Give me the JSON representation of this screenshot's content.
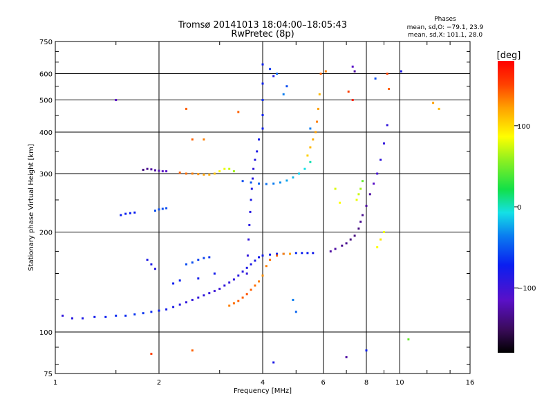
{
  "chart_data": {
    "type": "scatter",
    "title": "Tromsø 20141013 18:04:00–18:05:43",
    "subtitle": "RwPretec (8p)",
    "stats_title": "Phases",
    "stats_line1": "mean, sd,O: −79.1, 23.9",
    "stats_line2": "mean, sd,X: 101.1, 28.0",
    "xlabel": "Frequency [MHz]",
    "ylabel": "Stationary phase Virtual Height [km]",
    "x_scale": "log",
    "y_scale": "log",
    "xlim": [
      1,
      16
    ],
    "ylim": [
      75,
      750
    ],
    "x_ticks": [
      1,
      2,
      4,
      6,
      8,
      10,
      16
    ],
    "x_tick_labels": [
      "1",
      "2",
      "4",
      "6",
      "8",
      "10",
      "16"
    ],
    "y_ticks": [
      75,
      100,
      200,
      300,
      400,
      500,
      600,
      750
    ],
    "y_tick_labels": [
      "75",
      "100",
      "200",
      "300",
      "400",
      "500",
      "600",
      "750"
    ],
    "grid": true,
    "colorbar": {
      "label": "[deg]",
      "range": [
        -180,
        180
      ],
      "ticks": [
        100,
        0,
        -100
      ],
      "tick_labels": [
        "100",
        "0",
        "−100"
      ]
    },
    "series": [
      {
        "values": [
          [
            1.05,
            112,
            -100
          ],
          [
            1.12,
            110,
            -95
          ],
          [
            1.2,
            110,
            -90
          ],
          [
            1.3,
            111,
            -85
          ],
          [
            1.4,
            111,
            -80
          ],
          [
            1.5,
            112,
            -75
          ],
          [
            1.6,
            112,
            -75
          ],
          [
            1.7,
            113,
            -70
          ],
          [
            1.8,
            114,
            -70
          ],
          [
            1.9,
            115,
            -75
          ],
          [
            2.0,
            116,
            -80
          ],
          [
            2.1,
            117,
            -85
          ],
          [
            2.2,
            119,
            -90
          ],
          [
            2.3,
            121,
            -95
          ],
          [
            2.4,
            123,
            -100
          ],
          [
            2.5,
            125,
            -100
          ],
          [
            2.6,
            127,
            -100
          ],
          [
            2.7,
            129,
            -100
          ],
          [
            2.8,
            131,
            -100
          ],
          [
            2.9,
            133,
            -105
          ],
          [
            3.0,
            135,
            -105
          ],
          [
            3.1,
            138,
            -100
          ],
          [
            3.2,
            141,
            -100
          ],
          [
            3.3,
            144,
            -100
          ],
          [
            3.4,
            148,
            -95
          ],
          [
            3.5,
            152,
            -95
          ],
          [
            3.6,
            156,
            -90
          ],
          [
            3.7,
            160,
            -90
          ],
          [
            3.8,
            164,
            -90
          ],
          [
            3.9,
            168,
            -85
          ],
          [
            4.0,
            170,
            -85
          ],
          [
            4.2,
            171,
            -80
          ],
          [
            4.4,
            172,
            -80
          ],
          [
            4.6,
            172,
            -75
          ],
          [
            4.8,
            172,
            -75
          ],
          [
            5.0,
            173,
            -75
          ],
          [
            5.2,
            173,
            -80
          ],
          [
            5.4,
            173,
            -80
          ],
          [
            5.6,
            173,
            -85
          ]
        ]
      },
      {
        "values": [
          [
            3.2,
            120,
            140
          ],
          [
            3.3,
            122,
            145
          ],
          [
            3.4,
            124,
            150
          ],
          [
            3.5,
            127,
            150
          ],
          [
            3.6,
            130,
            155
          ],
          [
            3.7,
            134,
            150
          ],
          [
            3.8,
            138,
            145
          ],
          [
            3.9,
            142,
            140
          ],
          [
            4.0,
            148,
            135
          ],
          [
            4.1,
            158,
            140
          ],
          [
            4.2,
            165,
            145
          ],
          [
            4.4,
            170,
            150
          ],
          [
            4.6,
            172,
            140
          ],
          [
            4.8,
            172,
            130
          ]
        ]
      },
      {
        "values": [
          [
            3.6,
            150,
            -100
          ],
          [
            3.62,
            170,
            -100
          ],
          [
            3.64,
            190,
            -100
          ],
          [
            3.66,
            210,
            -95
          ],
          [
            3.68,
            230,
            -95
          ],
          [
            3.7,
            250,
            -90
          ],
          [
            3.72,
            270,
            -90
          ],
          [
            3.74,
            290,
            -95
          ],
          [
            3.76,
            310,
            -100
          ],
          [
            3.8,
            330,
            -95
          ],
          [
            3.85,
            350,
            -90
          ],
          [
            3.9,
            380,
            -85
          ],
          [
            4.0,
            410,
            -80
          ],
          [
            4.0,
            450,
            -80
          ],
          [
            4.0,
            500,
            -75
          ],
          [
            4.0,
            560,
            -80
          ]
        ]
      },
      {
        "values": [
          [
            3.5,
            285,
            -60
          ],
          [
            3.7,
            282,
            -55
          ],
          [
            3.9,
            280,
            -50
          ],
          [
            4.1,
            279,
            -45
          ],
          [
            4.3,
            280,
            -40
          ],
          [
            4.5,
            282,
            -35
          ],
          [
            4.7,
            286,
            -30
          ],
          [
            4.9,
            292,
            -25
          ],
          [
            5.1,
            300,
            -20
          ],
          [
            5.3,
            310,
            -15
          ],
          [
            5.5,
            325,
            -10
          ]
        ]
      },
      {
        "values": [
          [
            5.4,
            340,
            110
          ],
          [
            5.5,
            360,
            120
          ],
          [
            5.6,
            380,
            125
          ],
          [
            5.7,
            400,
            130
          ],
          [
            5.75,
            430,
            140
          ],
          [
            5.8,
            470,
            130
          ],
          [
            5.85,
            520,
            120
          ],
          [
            5.9,
            600,
            150
          ]
        ]
      },
      {
        "values": [
          [
            1.8,
            308,
            -140
          ],
          [
            1.85,
            310,
            -135
          ],
          [
            1.9,
            309,
            -130
          ],
          [
            1.95,
            307,
            -130
          ],
          [
            2.0,
            306,
            -125
          ],
          [
            2.05,
            305,
            -120
          ],
          [
            2.1,
            305,
            -120
          ]
        ]
      },
      {
        "values": [
          [
            2.3,
            302,
            150
          ],
          [
            2.4,
            300,
            145
          ],
          [
            2.5,
            300,
            140
          ],
          [
            2.6,
            299,
            135
          ],
          [
            2.7,
            298,
            130
          ],
          [
            2.8,
            298,
            125
          ],
          [
            2.9,
            300,
            115
          ],
          [
            3.0,
            305,
            90
          ],
          [
            3.1,
            310,
            80
          ],
          [
            3.2,
            310,
            60
          ],
          [
            3.3,
            305,
            40
          ]
        ]
      },
      {
        "values": [
          [
            1.55,
            225,
            -80
          ],
          [
            1.6,
            227,
            -80
          ],
          [
            1.65,
            228,
            -80
          ],
          [
            1.7,
            229,
            -80
          ],
          [
            1.95,
            232,
            -60
          ],
          [
            2.0,
            234,
            -60
          ],
          [
            2.05,
            235,
            -60
          ],
          [
            2.1,
            236,
            -60
          ]
        ]
      },
      {
        "values": [
          [
            6.3,
            175,
            -130
          ],
          [
            6.5,
            178,
            -130
          ],
          [
            6.8,
            182,
            -135
          ],
          [
            7.0,
            185,
            -135
          ],
          [
            7.2,
            190,
            -140
          ],
          [
            7.4,
            195,
            -140
          ],
          [
            7.6,
            205,
            -140
          ],
          [
            7.7,
            215,
            -135
          ],
          [
            7.8,
            225,
            -135
          ],
          [
            8.0,
            240,
            -130
          ],
          [
            8.2,
            260,
            -130
          ],
          [
            8.4,
            280,
            -120
          ],
          [
            8.6,
            300,
            -110
          ],
          [
            8.8,
            330,
            -100
          ],
          [
            9.0,
            370,
            -100
          ],
          [
            9.2,
            420,
            -100
          ]
        ]
      },
      {
        "values": [
          [
            7.5,
            250,
            80
          ],
          [
            7.6,
            260,
            60
          ],
          [
            7.7,
            270,
            40
          ],
          [
            7.8,
            285,
            20
          ],
          [
            8.6,
            180,
            90
          ],
          [
            8.8,
            190,
            100
          ],
          [
            9.0,
            200,
            80
          ],
          [
            6.5,
            270,
            70
          ],
          [
            6.7,
            245,
            90
          ]
        ]
      },
      {
        "values": [
          [
            2.4,
            160,
            -60
          ],
          [
            2.5,
            162,
            -60
          ],
          [
            2.6,
            165,
            -65
          ],
          [
            2.7,
            167,
            -65
          ],
          [
            2.8,
            168,
            -70
          ],
          [
            2.2,
            140,
            -80
          ],
          [
            2.3,
            143,
            -80
          ],
          [
            2.6,
            145,
            -85
          ],
          [
            2.9,
            150,
            -85
          ],
          [
            1.85,
            165,
            -90
          ],
          [
            1.9,
            160,
            -90
          ],
          [
            1.95,
            155,
            -95
          ]
        ]
      },
      {
        "values": [
          [
            1.5,
            500,
            -120
          ],
          [
            2.4,
            470,
            150
          ],
          [
            2.5,
            380,
            150
          ],
          [
            2.7,
            380,
            140
          ],
          [
            4.0,
            640,
            -80
          ],
          [
            4.2,
            620,
            -70
          ],
          [
            4.3,
            590,
            -90
          ],
          [
            4.7,
            550,
            -60
          ],
          [
            4.6,
            520,
            -40
          ],
          [
            6.1,
            610,
            140
          ],
          [
            7.3,
            630,
            -120
          ],
          [
            7.4,
            610,
            -130
          ],
          [
            7.1,
            530,
            160
          ],
          [
            7.3,
            500,
            170
          ],
          [
            8.5,
            580,
            -60
          ],
          [
            9.2,
            600,
            160
          ],
          [
            9.3,
            540,
            150
          ],
          [
            10.1,
            610,
            -90
          ],
          [
            12.5,
            490,
            130
          ],
          [
            13.0,
            470,
            120
          ],
          [
            2.5,
            88,
            150
          ],
          [
            1.9,
            86,
            160
          ],
          [
            4.3,
            81,
            -90
          ],
          [
            7.0,
            84,
            -130
          ],
          [
            8.0,
            88,
            -80
          ],
          [
            10.6,
            95,
            20
          ],
          [
            4.4,
            600,
            -50
          ],
          [
            3.4,
            460,
            150
          ],
          [
            4.9,
            125,
            -40
          ],
          [
            5.0,
            115,
            -50
          ],
          [
            5.5,
            410,
            -40
          ]
        ]
      }
    ]
  }
}
